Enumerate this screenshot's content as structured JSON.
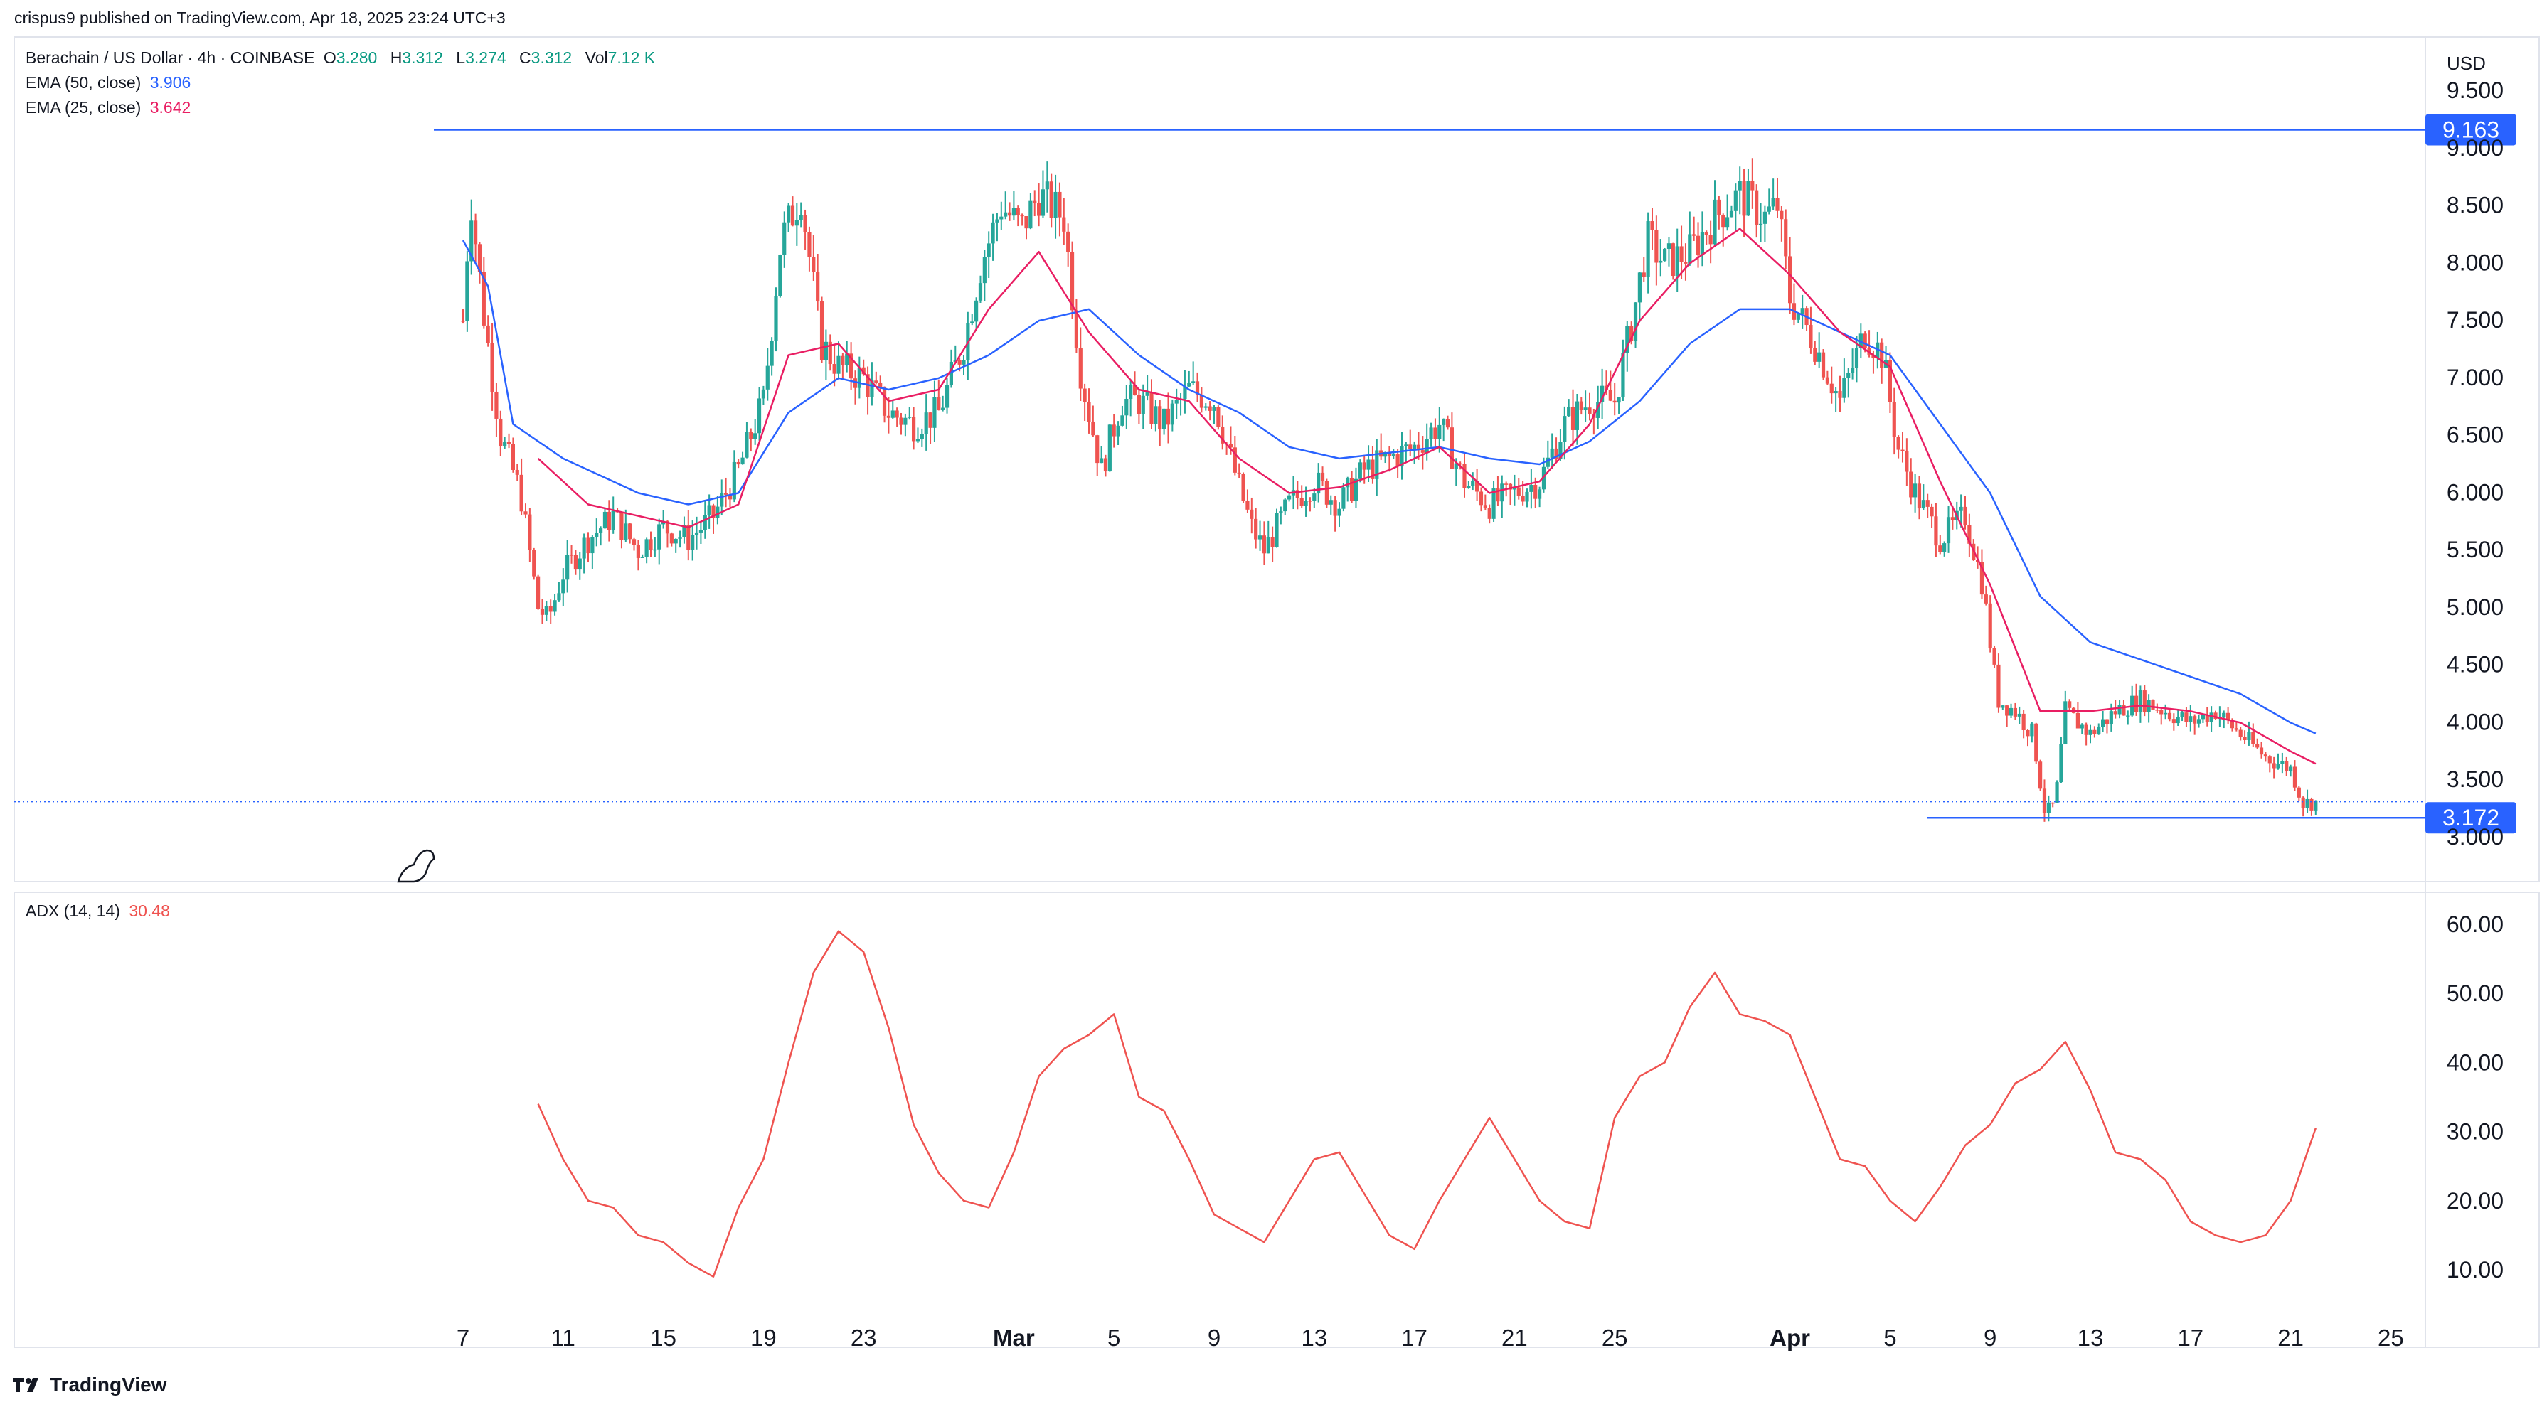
{
  "header": {
    "publish_line": "crispus9 published on TradingView.com, Apr 18, 2025 23:24 UTC+3"
  },
  "legend": {
    "symbol": "Berachain / US Dollar · 4h · COINBASE",
    "o_label": "O",
    "o_value": "3.280",
    "h_label": "H",
    "h_value": "3.312",
    "l_label": "L",
    "l_value": "3.274",
    "c_label": "C",
    "c_value": "3.312",
    "vol_label": "Vol",
    "vol_value": "7.12 K",
    "ema50_label": "EMA (50, close)",
    "ema50_value": "3.906",
    "ema25_label": "EMA (25, close)",
    "ema25_value": "3.642",
    "adx_label": "ADX (14, 14)",
    "adx_value": "30.48"
  },
  "colors": {
    "up": "#26a69a",
    "down": "#ef5350",
    "ema50": "#2962ff",
    "ema25": "#e91e63",
    "adx": "#ef5350",
    "level": "#2962ff",
    "label_bg": "#2962ff"
  },
  "brand": {
    "name": "TradingView",
    "icon": "tradingview-logo-icon"
  },
  "chart_data": [
    {
      "type": "candlestick",
      "currency": "USD",
      "timeframe": "4h",
      "y_ticks": [
        "3.000",
        "3.500",
        "4.000",
        "4.500",
        "5.000",
        "5.500",
        "6.000",
        "6.500",
        "7.000",
        "7.500",
        "8.000",
        "8.500",
        "9.000",
        "9.500"
      ],
      "ylim": [
        2.75,
        9.6
      ],
      "x_ticks": [
        "7",
        "11",
        "15",
        "19",
        "23",
        "Mar",
        "5",
        "9",
        "13",
        "17",
        "21",
        "25",
        "Apr",
        "5",
        "9",
        "13",
        "17",
        "21",
        "25"
      ],
      "x_tick_day_index": [
        0,
        4,
        8,
        12,
        16,
        22,
        26,
        30,
        34,
        38,
        42,
        46,
        53,
        57,
        61,
        65,
        69,
        73,
        77
      ],
      "price_levels": [
        {
          "value": 9.163,
          "label": "9.163"
        },
        {
          "value": 3.172,
          "label": "3.172"
        }
      ],
      "last_price": 3.312,
      "close_path": [
        [
          0,
          7.5
        ],
        [
          0.3,
          8.6
        ],
        [
          0.8,
          7.6
        ],
        [
          1.5,
          6.5
        ],
        [
          2.3,
          6.0
        ],
        [
          3.0,
          5.0
        ],
        [
          3.4,
          4.9
        ],
        [
          4,
          5.3
        ],
        [
          5,
          5.6
        ],
        [
          6,
          5.8
        ],
        [
          7,
          5.5
        ],
        [
          8,
          5.7
        ],
        [
          9,
          5.6
        ],
        [
          10,
          5.8
        ],
        [
          11,
          6.2
        ],
        [
          12,
          6.8
        ],
        [
          12.7,
          8.2
        ],
        [
          13.5,
          8.6
        ],
        [
          14.3,
          7.3
        ],
        [
          15,
          7.1
        ],
        [
          16,
          7.0
        ],
        [
          17,
          6.7
        ],
        [
          18,
          6.6
        ],
        [
          19,
          6.7
        ],
        [
          20,
          7.3
        ],
        [
          20.7,
          8.0
        ],
        [
          21.5,
          8.5
        ],
        [
          22.3,
          8.3
        ],
        [
          23,
          8.6
        ],
        [
          24,
          8.4
        ],
        [
          24.7,
          7.0
        ],
        [
          25.5,
          6.2
        ],
        [
          26.3,
          6.8
        ],
        [
          27,
          6.8
        ],
        [
          28,
          6.6
        ],
        [
          29,
          6.9
        ],
        [
          30,
          6.8
        ],
        [
          30.8,
          6.2
        ],
        [
          31.5,
          5.7
        ],
        [
          32,
          5.5
        ],
        [
          33,
          5.9
        ],
        [
          34,
          6.1
        ],
        [
          35,
          5.9
        ],
        [
          36,
          6.2
        ],
        [
          37,
          6.3
        ],
        [
          38,
          6.4
        ],
        [
          39,
          6.6
        ],
        [
          40,
          6.1
        ],
        [
          41,
          5.9
        ],
        [
          42,
          6.0
        ],
        [
          43,
          6.1
        ],
        [
          44,
          6.6
        ],
        [
          45,
          6.8
        ],
        [
          46,
          6.8
        ],
        [
          46.7,
          7.5
        ],
        [
          47.3,
          8.2
        ],
        [
          48,
          8.0
        ],
        [
          49,
          8.1
        ],
        [
          50,
          8.4
        ],
        [
          51,
          8.6
        ],
        [
          52,
          8.4
        ],
        [
          52.5,
          8.5
        ],
        [
          53,
          7.7
        ],
        [
          54,
          7.3
        ],
        [
          55,
          6.8
        ],
        [
          56,
          7.4
        ],
        [
          56.7,
          7.2
        ],
        [
          57.3,
          6.4
        ],
        [
          58,
          6.0
        ],
        [
          59,
          5.6
        ],
        [
          60,
          5.8
        ],
        [
          60.7,
          5.2
        ],
        [
          61.3,
          4.2
        ],
        [
          62,
          4.1
        ],
        [
          62.7,
          3.9
        ],
        [
          63.2,
          3.2
        ],
        [
          63.6,
          3.3
        ],
        [
          64,
          4.1
        ],
        [
          65,
          3.9
        ],
        [
          66,
          4.1
        ],
        [
          67,
          4.2
        ],
        [
          68,
          4.1
        ],
        [
          69,
          4.0
        ],
        [
          70,
          4.1
        ],
        [
          71,
          3.9
        ],
        [
          72,
          3.7
        ],
        [
          73,
          3.6
        ],
        [
          73.5,
          3.3
        ],
        [
          74,
          3.31
        ]
      ],
      "series": [
        {
          "name": "EMA (50, close)",
          "points": [
            [
              0,
              8.2
            ],
            [
              1,
              7.8
            ],
            [
              2,
              6.6
            ],
            [
              4,
              6.3
            ],
            [
              7,
              6.0
            ],
            [
              9,
              5.9
            ],
            [
              11,
              6.0
            ],
            [
              13,
              6.7
            ],
            [
              15,
              7.0
            ],
            [
              17,
              6.9
            ],
            [
              19,
              7.0
            ],
            [
              21,
              7.2
            ],
            [
              23,
              7.5
            ],
            [
              25,
              7.6
            ],
            [
              27,
              7.2
            ],
            [
              29,
              6.9
            ],
            [
              31,
              6.7
            ],
            [
              33,
              6.4
            ],
            [
              35,
              6.3
            ],
            [
              37,
              6.35
            ],
            [
              39,
              6.4
            ],
            [
              41,
              6.3
            ],
            [
              43,
              6.25
            ],
            [
              45,
              6.45
            ],
            [
              47,
              6.8
            ],
            [
              49,
              7.3
            ],
            [
              51,
              7.6
            ],
            [
              53,
              7.6
            ],
            [
              55,
              7.4
            ],
            [
              57,
              7.2
            ],
            [
              59,
              6.6
            ],
            [
              61,
              6.0
            ],
            [
              63,
              5.1
            ],
            [
              65,
              4.7
            ],
            [
              67,
              4.55
            ],
            [
              69,
              4.4
            ],
            [
              71,
              4.25
            ],
            [
              73,
              4.0
            ],
            [
              74,
              3.906
            ]
          ]
        },
        {
          "name": "EMA (25, close)",
          "points": [
            [
              3,
              6.3
            ],
            [
              5,
              5.9
            ],
            [
              7,
              5.8
            ],
            [
              9,
              5.7
            ],
            [
              11,
              5.9
            ],
            [
              13,
              7.2
            ],
            [
              15,
              7.3
            ],
            [
              17,
              6.8
            ],
            [
              19,
              6.9
            ],
            [
              21,
              7.6
            ],
            [
              23,
              8.1
            ],
            [
              25,
              7.4
            ],
            [
              27,
              6.9
            ],
            [
              29,
              6.8
            ],
            [
              31,
              6.3
            ],
            [
              33,
              6.0
            ],
            [
              35,
              6.05
            ],
            [
              37,
              6.2
            ],
            [
              39,
              6.4
            ],
            [
              41,
              6.0
            ],
            [
              43,
              6.1
            ],
            [
              45,
              6.6
            ],
            [
              47,
              7.5
            ],
            [
              49,
              8.0
            ],
            [
              51,
              8.3
            ],
            [
              53,
              7.9
            ],
            [
              55,
              7.4
            ],
            [
              57,
              7.1
            ],
            [
              59,
              6.1
            ],
            [
              61,
              5.2
            ],
            [
              63,
              4.1
            ],
            [
              65,
              4.1
            ],
            [
              67,
              4.15
            ],
            [
              69,
              4.1
            ],
            [
              71,
              4.0
            ],
            [
              73,
              3.75
            ],
            [
              74,
              3.642
            ]
          ]
        }
      ]
    },
    {
      "type": "line",
      "name": "ADX (14, 14)",
      "y_ticks": [
        "10.00",
        "20.00",
        "30.00",
        "40.00",
        "50.00",
        "60.00"
      ],
      "ylim": [
        5,
        63
      ],
      "points": [
        [
          3,
          34
        ],
        [
          4,
          26
        ],
        [
          5,
          20
        ],
        [
          6,
          19
        ],
        [
          7,
          15
        ],
        [
          8,
          14
        ],
        [
          9,
          11
        ],
        [
          10,
          9
        ],
        [
          11,
          19
        ],
        [
          12,
          26
        ],
        [
          13,
          40
        ],
        [
          14,
          53
        ],
        [
          15,
          59
        ],
        [
          16,
          56
        ],
        [
          17,
          45
        ],
        [
          18,
          31
        ],
        [
          19,
          24
        ],
        [
          20,
          20
        ],
        [
          21,
          19
        ],
        [
          22,
          27
        ],
        [
          23,
          38
        ],
        [
          24,
          42
        ],
        [
          25,
          44
        ],
        [
          26,
          47
        ],
        [
          27,
          35
        ],
        [
          28,
          33
        ],
        [
          29,
          26
        ],
        [
          30,
          18
        ],
        [
          31,
          16
        ],
        [
          32,
          14
        ],
        [
          33,
          20
        ],
        [
          34,
          26
        ],
        [
          35,
          27
        ],
        [
          36,
          21
        ],
        [
          37,
          15
        ],
        [
          38,
          13
        ],
        [
          39,
          20
        ],
        [
          40,
          26
        ],
        [
          41,
          32
        ],
        [
          42,
          26
        ],
        [
          43,
          20
        ],
        [
          44,
          17
        ],
        [
          45,
          16
        ],
        [
          46,
          32
        ],
        [
          47,
          38
        ],
        [
          48,
          40
        ],
        [
          49,
          48
        ],
        [
          50,
          53
        ],
        [
          51,
          47
        ],
        [
          52,
          46
        ],
        [
          53,
          44
        ],
        [
          54,
          35
        ],
        [
          55,
          26
        ],
        [
          56,
          25
        ],
        [
          57,
          20
        ],
        [
          58,
          17
        ],
        [
          59,
          22
        ],
        [
          60,
          28
        ],
        [
          61,
          31
        ],
        [
          62,
          37
        ],
        [
          63,
          39
        ],
        [
          64,
          43
        ],
        [
          65,
          36
        ],
        [
          66,
          27
        ],
        [
          67,
          26
        ],
        [
          68,
          23
        ],
        [
          69,
          17
        ],
        [
          70,
          15
        ],
        [
          71,
          14
        ],
        [
          72,
          15
        ],
        [
          73,
          20
        ],
        [
          74,
          30.48
        ]
      ]
    }
  ]
}
